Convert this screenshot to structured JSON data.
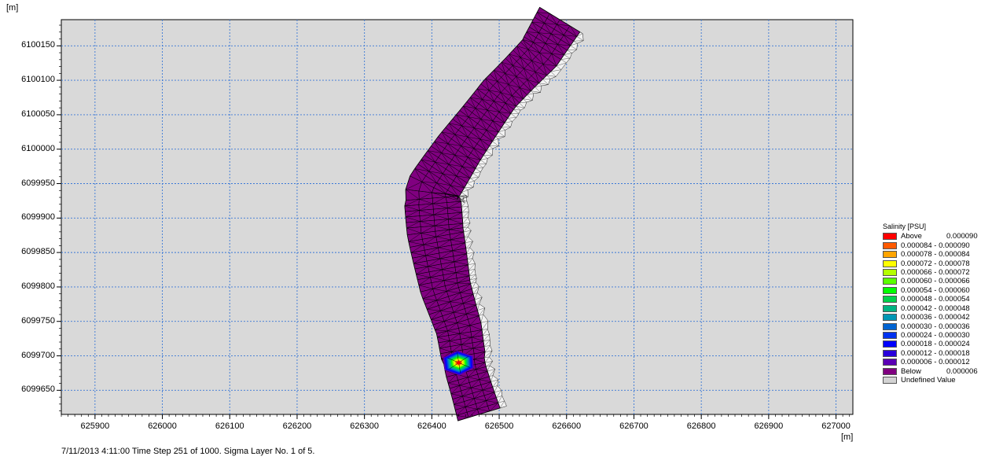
{
  "chart_data": {
    "type": "heatmap",
    "subtype": "2D mesh contour map",
    "y_unit_label": "[m]",
    "x_unit_label": "[m]",
    "x_ticks": [
      625900,
      626000,
      626100,
      626200,
      626300,
      626400,
      626500,
      626600,
      626700,
      626800,
      626900,
      627000
    ],
    "y_ticks": [
      6100150,
      6100100,
      6100050,
      6100000,
      6099950,
      6099900,
      6099850,
      6099800,
      6099750,
      6099700,
      6099650
    ],
    "xlim": [
      625850,
      627025
    ],
    "ylim": [
      6099615,
      6100188
    ],
    "grid": true,
    "legend_position": "right",
    "domain_centerline": [
      [
        626590,
        6100188
      ],
      [
        626560,
        6100140
      ],
      [
        626500,
        6100080
      ],
      [
        626440,
        6100000
      ],
      [
        626400,
        6099940
      ],
      [
        626405,
        6099880
      ],
      [
        626420,
        6099800
      ],
      [
        626440,
        6099740
      ],
      [
        626450,
        6099680
      ],
      [
        626470,
        6099615
      ]
    ],
    "plume": {
      "x": 626440,
      "y": 6099690,
      "peak": "Above"
    },
    "legend": {
      "title": "Salinity [PSU]",
      "items": [
        {
          "color": "#ff0000",
          "text": "Above",
          "value": "0.000090"
        },
        {
          "color": "#ff5a00",
          "text": "0.000084 - 0.000090"
        },
        {
          "color": "#ffa500",
          "text": "0.000078 - 0.000084"
        },
        {
          "color": "#ffff00",
          "text": "0.000072 - 0.000078"
        },
        {
          "color": "#b4ff00",
          "text": "0.000066 - 0.000072"
        },
        {
          "color": "#5aff00",
          "text": "0.000060 - 0.000066"
        },
        {
          "color": "#00ff00",
          "text": "0.000054 - 0.000060"
        },
        {
          "color": "#00d24b",
          "text": "0.000048 - 0.000054"
        },
        {
          "color": "#00b482",
          "text": "0.000042 - 0.000048"
        },
        {
          "color": "#0096b4",
          "text": "0.000036 - 0.000042"
        },
        {
          "color": "#0064d2",
          "text": "0.000030 - 0.000036"
        },
        {
          "color": "#0032f0",
          "text": "0.000024 - 0.000030"
        },
        {
          "color": "#0000ff",
          "text": "0.000018 - 0.000024"
        },
        {
          "color": "#2800dc",
          "text": "0.000012 - 0.000018"
        },
        {
          "color": "#5a00b4",
          "text": "0.000006 - 0.000012"
        },
        {
          "color": "#800080",
          "text": "Below",
          "value": "0.000006"
        },
        {
          "color": "#d3d3d3",
          "text": "Undefined Value"
        }
      ]
    }
  },
  "caption": "7/11/2013 4:11:00  Time Step 251 of 1000. Sigma Layer No. 1 of 5."
}
